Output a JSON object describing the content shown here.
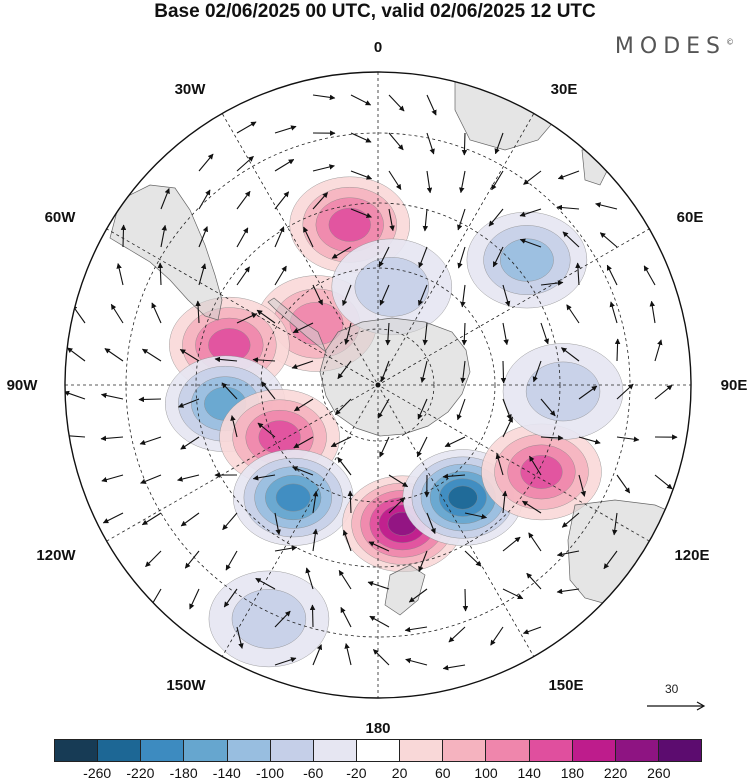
{
  "title": "Base 02/06/2025 00 UTC, valid 02/06/2025 12 UTC",
  "brand": "MODES",
  "brand_mark": "©",
  "longitude_labels": {
    "lon_0": "0",
    "lon_30e": "30E",
    "lon_60e": "60E",
    "lon_90e": "90E",
    "lon_120e": "120E",
    "lon_150e": "150E",
    "lon_180": "180",
    "lon_150w": "150W",
    "lon_120w": "120W",
    "lon_90w": "90W",
    "lon_60w": "60W",
    "lon_30w": "30W"
  },
  "projection": "south polar stereographic",
  "reference_vector": {
    "label": "30"
  },
  "colorbar": {
    "colors": [
      "#173b55",
      "#1d6795",
      "#3d8bc0",
      "#66a6cf",
      "#98bee0",
      "#c5cfe8",
      "#e6e6f2",
      "#ffffff",
      "#f9d8d8",
      "#f5b3bf",
      "#ef86ac",
      "#e04f9e",
      "#be1c8c",
      "#8e1482",
      "#5c0c6f"
    ],
    "ticks": [
      "-260",
      "-220",
      "-180",
      "-140",
      "-100",
      "-60",
      "-20",
      "20",
      "60",
      "100",
      "140",
      "180",
      "220",
      "260"
    ]
  },
  "anomaly_centers": [
    {
      "lon": 10,
      "lat": -50,
      "value": 175
    },
    {
      "lon": 45,
      "lat": -68,
      "value": 100
    },
    {
      "lon": 75,
      "lat": -52,
      "value": 140
    },
    {
      "lon": 97,
      "lat": -52,
      "value": -150
    },
    {
      "lon": 118,
      "lat": -62,
      "value": 150
    },
    {
      "lon": 143,
      "lat": -55,
      "value": -180
    },
    {
      "lon": 155,
      "lat": -30,
      "value": -60
    },
    {
      "lon": -170,
      "lat": -55,
      "value": 220
    },
    {
      "lon": -143,
      "lat": -55,
      "value": -230
    },
    {
      "lon": -118,
      "lat": -45,
      "value": 140
    },
    {
      "lon": -92,
      "lat": -45,
      "value": -90
    },
    {
      "lon": -50,
      "lat": -43,
      "value": -100
    },
    {
      "lon": -8,
      "lat": -65,
      "value": -60
    }
  ]
}
